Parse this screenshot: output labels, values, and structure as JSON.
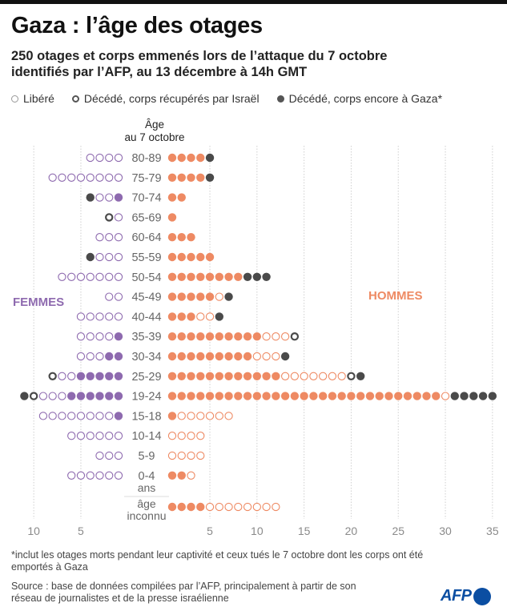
{
  "header": {
    "title": "Gaza : l’âge des otages",
    "subtitle_line1": "250 otages et corps emmenés lors de l’attaque du 7 octobre",
    "subtitle_line2": "identifiés par l’AFP, au 13 décembre à 14h GMT"
  },
  "legend": [
    {
      "key": "released",
      "label": "Libéré"
    },
    {
      "key": "recovered",
      "label": "Décédé, corps récupérés par Israël"
    },
    {
      "key": "in_gaza",
      "label": "Décédé, corps encore à Gaza*"
    }
  ],
  "colors": {
    "women": "#8E6AAF",
    "men": "#EE8A63",
    "deceased": "#4A4A4A",
    "grid": "#cfcfcf",
    "axis_text": "#8a8a8a",
    "age_text": "#666666"
  },
  "chart_data": {
    "type": "dot-pyramid",
    "title": "Gaza : l’âge des otages",
    "age_axis_title_line1": "Âge",
    "age_axis_title_line2": "au 7 octobre",
    "left_label": "FEMMES",
    "right_label": "HOMMES",
    "status_order": [
      "held",
      "released",
      "recovered",
      "in_gaza"
    ],
    "status_legend": {
      "held": "filled colored dot (still held)",
      "released": "open colored circle",
      "recovered": "dark ring",
      "in_gaza": "dark filled dot"
    },
    "x_ticks_women": [
      5,
      10
    ],
    "x_ticks_men": [
      5,
      10,
      15,
      20,
      25,
      30,
      35
    ],
    "xlim_women": [
      0,
      11
    ],
    "xlim_men": [
      0,
      35
    ],
    "groups": [
      {
        "age": "80-89",
        "women": {
          "held": 0,
          "released": 4,
          "recovered": 0,
          "in_gaza": 0
        },
        "men": {
          "held": 4,
          "released": 0,
          "recovered": 0,
          "in_gaza": 1
        }
      },
      {
        "age": "75-79",
        "women": {
          "held": 0,
          "released": 8,
          "recovered": 0,
          "in_gaza": 0
        },
        "men": {
          "held": 4,
          "released": 0,
          "recovered": 0,
          "in_gaza": 1
        }
      },
      {
        "age": "70-74",
        "women": {
          "held": 1,
          "released": 2,
          "recovered": 0,
          "in_gaza": 1
        },
        "men": {
          "held": 2,
          "released": 0,
          "recovered": 0,
          "in_gaza": 0
        }
      },
      {
        "age": "65-69",
        "women": {
          "held": 0,
          "released": 1,
          "recovered": 1,
          "in_gaza": 0
        },
        "men": {
          "held": 1,
          "released": 0,
          "recovered": 0,
          "in_gaza": 0
        }
      },
      {
        "age": "60-64",
        "women": {
          "held": 0,
          "released": 3,
          "recovered": 0,
          "in_gaza": 0
        },
        "men": {
          "held": 3,
          "released": 0,
          "recovered": 0,
          "in_gaza": 0
        }
      },
      {
        "age": "55-59",
        "women": {
          "held": 0,
          "released": 3,
          "recovered": 0,
          "in_gaza": 1
        },
        "men": {
          "held": 5,
          "released": 0,
          "recovered": 0,
          "in_gaza": 0
        }
      },
      {
        "age": "50-54",
        "women": {
          "held": 0,
          "released": 7,
          "recovered": 0,
          "in_gaza": 0
        },
        "men": {
          "held": 8,
          "released": 0,
          "recovered": 0,
          "in_gaza": 3
        }
      },
      {
        "age": "45-49",
        "women": {
          "held": 0,
          "released": 2,
          "recovered": 0,
          "in_gaza": 0
        },
        "men": {
          "held": 5,
          "released": 1,
          "recovered": 0,
          "in_gaza": 1
        }
      },
      {
        "age": "40-44",
        "women": {
          "held": 0,
          "released": 5,
          "recovered": 0,
          "in_gaza": 0
        },
        "men": {
          "held": 3,
          "released": 2,
          "recovered": 0,
          "in_gaza": 1
        }
      },
      {
        "age": "35-39",
        "women": {
          "held": 1,
          "released": 4,
          "recovered": 0,
          "in_gaza": 0
        },
        "men": {
          "held": 10,
          "released": 3,
          "recovered": 1,
          "in_gaza": 0
        }
      },
      {
        "age": "30-34",
        "women": {
          "held": 2,
          "released": 3,
          "recovered": 0,
          "in_gaza": 0
        },
        "men": {
          "held": 9,
          "released": 3,
          "recovered": 0,
          "in_gaza": 1
        }
      },
      {
        "age": "25-29",
        "women": {
          "held": 5,
          "released": 2,
          "recovered": 1,
          "in_gaza": 0
        },
        "men": {
          "held": 12,
          "released": 7,
          "recovered": 1,
          "in_gaza": 1
        }
      },
      {
        "age": "19-24",
        "women": {
          "held": 6,
          "released": 3,
          "recovered": 1,
          "in_gaza": 1
        },
        "men": {
          "held": 29,
          "released": 1,
          "recovered": 0,
          "in_gaza": 5
        }
      },
      {
        "age": "15-18",
        "women": {
          "held": 1,
          "released": 8,
          "recovered": 0,
          "in_gaza": 0
        },
        "men": {
          "held": 1,
          "released": 6,
          "recovered": 0,
          "in_gaza": 0
        }
      },
      {
        "age": "10-14",
        "women": {
          "held": 0,
          "released": 6,
          "recovered": 0,
          "in_gaza": 0
        },
        "men": {
          "held": 0,
          "released": 4,
          "recovered": 0,
          "in_gaza": 0
        }
      },
      {
        "age": "5-9",
        "women": {
          "held": 0,
          "released": 3,
          "recovered": 0,
          "in_gaza": 0
        },
        "men": {
          "held": 0,
          "released": 4,
          "recovered": 0,
          "in_gaza": 0
        }
      },
      {
        "age": "0-4",
        "age_suffix": "ans",
        "women": {
          "held": 0,
          "released": 6,
          "recovered": 0,
          "in_gaza": 0
        },
        "men": {
          "held": 2,
          "released": 1,
          "recovered": 0,
          "in_gaza": 0
        }
      },
      {
        "age": "âge",
        "age_suffix": "inconnu",
        "separated": true,
        "women": {
          "held": 0,
          "released": 0,
          "recovered": 0,
          "in_gaza": 0
        },
        "men": {
          "held": 4,
          "released": 8,
          "recovered": 0,
          "in_gaza": 0
        }
      }
    ]
  },
  "footer": {
    "footnote": "*inclut les otages morts pendant leur captivité et ceux tués le 7 octobre dont les corps ont été emportés à Gaza",
    "source": "Source : base de données compilées par l’AFP, principalement à partir de son réseau de journalistes et de la presse israélienne",
    "logo_text": "AFP"
  }
}
